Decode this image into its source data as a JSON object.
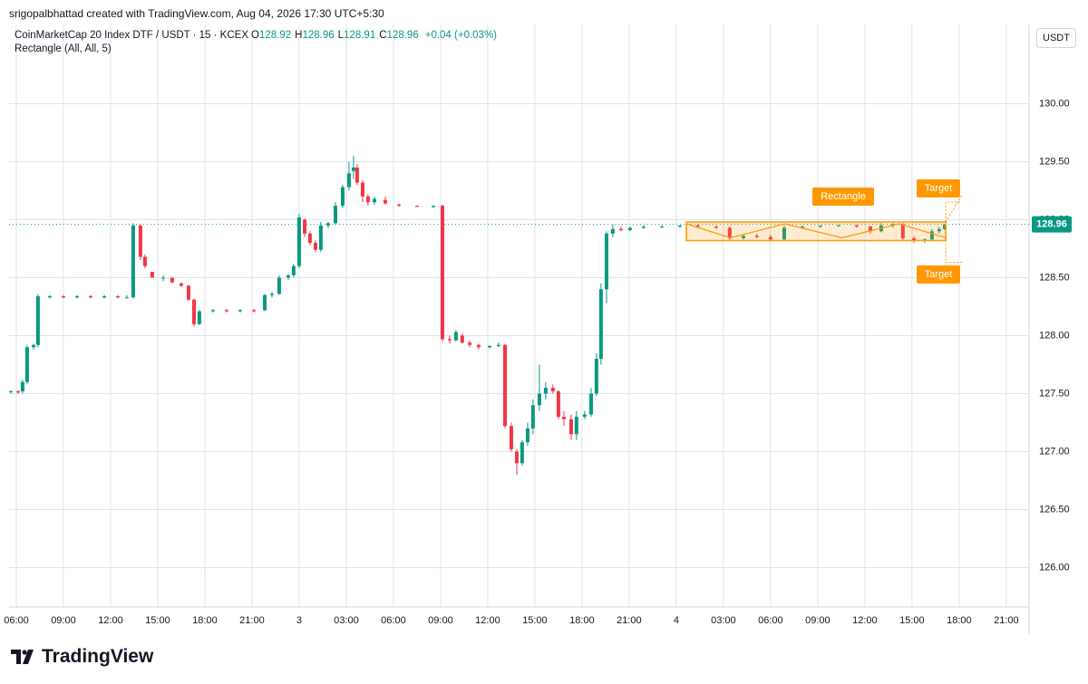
{
  "attribution": "srigopalbhattad created with TradingView.com, Aug 04, 2026 17:30 UTC+5:30",
  "logo": "TradingView",
  "chart_data": {
    "type": "candlestick",
    "title": "CoinMarketCap 20 Index DTF / USDT · 15 · KCEX",
    "ohlc": [
      {
        "label": "O",
        "value": "128.92"
      },
      {
        "label": "H",
        "value": "128.96"
      },
      {
        "label": "L",
        "value": "128.91"
      },
      {
        "label": "C",
        "value": "128.96"
      }
    ],
    "change": "+0.04 (+0.03%)",
    "indicator": "Rectangle (All, All, 5)",
    "currency": "USDT",
    "up_color": "#089981",
    "down_color": "#f23645",
    "grid": true,
    "current_price": 128.96,
    "current_price_label": "128.96",
    "xlim": [
      -0.46,
      64.45
    ],
    "ylim": [
      125.66,
      130.66
    ],
    "xticks": [
      {
        "value": 0,
        "label": "06:00"
      },
      {
        "value": 3,
        "label": "09:00"
      },
      {
        "value": 6,
        "label": "12:00"
      },
      {
        "value": 9,
        "label": "15:00"
      },
      {
        "value": 12,
        "label": "18:00"
      },
      {
        "value": 15,
        "label": "21:00"
      },
      {
        "value": 18,
        "label": "3"
      },
      {
        "value": 21,
        "label": "03:00"
      },
      {
        "value": 24,
        "label": "06:00"
      },
      {
        "value": 27,
        "label": "09:00"
      },
      {
        "value": 30,
        "label": "12:00"
      },
      {
        "value": 33,
        "label": "15:00"
      },
      {
        "value": 36,
        "label": "18:00"
      },
      {
        "value": 39,
        "label": "21:00"
      },
      {
        "value": 42,
        "label": "4"
      },
      {
        "value": 45,
        "label": "03:00"
      },
      {
        "value": 48,
        "label": "06:00"
      },
      {
        "value": 51,
        "label": "09:00"
      },
      {
        "value": 54,
        "label": "12:00"
      },
      {
        "value": 57,
        "label": "15:00"
      },
      {
        "value": 60,
        "label": "18:00"
      },
      {
        "value": 63,
        "label": "21:00"
      }
    ],
    "yticks": [
      {
        "value": 126,
        "label": "126.00"
      },
      {
        "value": 126.5,
        "label": "126.50"
      },
      {
        "value": 127,
        "label": "127.00"
      },
      {
        "value": 127.5,
        "label": "127.50"
      },
      {
        "value": 128,
        "label": "128.00"
      },
      {
        "value": 128.5,
        "label": "128.50"
      },
      {
        "value": 129,
        "label": "129.00"
      },
      {
        "value": 129.5,
        "label": "129.50"
      },
      {
        "value": 130,
        "label": "130.00"
      }
    ],
    "x": [
      -0.35,
      0.12,
      0.4,
      0.69,
      1.1,
      1.38,
      2.13,
      3.0,
      3.87,
      4.73,
      5.6,
      6.46,
      7.04,
      7.44,
      7.9,
      8.19,
      8.65,
      9.35,
      9.92,
      10.5,
      10.96,
      11.31,
      11.65,
      12.52,
      13.38,
      14.25,
      15.12,
      15.81,
      16.27,
      16.73,
      17.31,
      17.65,
      18.0,
      18.35,
      18.69,
      19.04,
      19.38,
      19.85,
      20.31,
      20.77,
      21.17,
      21.46,
      21.69,
      22.04,
      22.38,
      22.79,
      23.48,
      24.35,
      25.5,
      26.54,
      27.12,
      27.58,
      27.98,
      28.38,
      28.85,
      29.42,
      30.12,
      30.69,
      31.1,
      31.5,
      31.85,
      32.19,
      32.54,
      32.88,
      33.29,
      33.69,
      34.15,
      34.5,
      34.85,
      35.31,
      35.65,
      36.17,
      36.58,
      36.92,
      37.21,
      37.56,
      37.96,
      38.48,
      39.06,
      39.92,
      41.08,
      42.23,
      43.38,
      44.54,
      45.4,
      46.27,
      47.13,
      48.0,
      48.87,
      50.02,
      51.17,
      52.33,
      53.48,
      54.35,
      55.04,
      55.79,
      56.42,
      57.12,
      57.81,
      58.27,
      58.73,
      59.08
    ],
    "open": [
      127.52,
      127.52,
      127.52,
      127.6,
      127.9,
      127.92,
      128.33,
      128.34,
      128.33,
      128.34,
      128.33,
      128.34,
      128.33,
      128.33,
      128.95,
      128.68,
      128.55,
      128.5,
      128.5,
      128.45,
      128.43,
      128.31,
      128.1,
      128.21,
      128.22,
      128.21,
      128.22,
      128.22,
      128.35,
      128.36,
      128.5,
      128.52,
      128.6,
      129.0,
      128.88,
      128.8,
      128.74,
      128.95,
      128.97,
      129.12,
      129.28,
      129.42,
      129.45,
      129.32,
      129.2,
      129.15,
      129.17,
      129.13,
      129.12,
      129.11,
      129.12,
      127.97,
      127.96,
      128.0,
      127.94,
      127.92,
      127.9,
      127.91,
      127.92,
      127.22,
      127.0,
      126.9,
      127.08,
      127.2,
      127.4,
      127.5,
      127.55,
      127.52,
      127.3,
      127.28,
      127.15,
      127.3,
      127.32,
      127.5,
      127.8,
      128.4,
      128.88,
      128.92,
      128.91,
      128.93,
      128.94,
      128.94,
      128.95,
      128.94,
      128.93,
      128.84,
      128.86,
      128.85,
      128.83,
      128.93,
      128.94,
      128.95,
      128.95,
      128.94,
      128.9,
      128.95,
      128.96,
      128.84,
      128.82,
      128.83,
      128.9,
      128.92
    ],
    "high": [
      127.53,
      127.53,
      127.62,
      127.92,
      127.93,
      128.36,
      128.35,
      128.35,
      128.35,
      128.35,
      128.35,
      128.35,
      128.35,
      128.97,
      128.96,
      128.7,
      128.55,
      128.52,
      128.5,
      128.46,
      128.44,
      128.32,
      128.22,
      128.23,
      128.23,
      128.23,
      128.23,
      128.36,
      128.38,
      128.52,
      128.53,
      128.62,
      129.05,
      129.01,
      128.9,
      128.82,
      128.98,
      128.98,
      129.15,
      129.3,
      129.5,
      129.55,
      129.48,
      129.34,
      129.22,
      129.2,
      129.2,
      129.14,
      129.12,
      129.12,
      129.13,
      128.0,
      128.05,
      128.02,
      127.96,
      127.93,
      127.92,
      127.94,
      127.93,
      127.25,
      127.02,
      127.1,
      127.25,
      127.45,
      127.75,
      127.6,
      127.58,
      127.53,
      127.35,
      127.32,
      127.35,
      127.35,
      127.55,
      127.85,
      128.45,
      128.9,
      128.96,
      128.94,
      128.94,
      128.95,
      128.95,
      128.95,
      128.96,
      128.95,
      128.94,
      128.87,
      128.88,
      128.87,
      128.95,
      128.95,
      128.95,
      128.96,
      128.96,
      128.95,
      128.97,
      128.97,
      128.97,
      128.86,
      128.84,
      128.92,
      128.94,
      128.96
    ],
    "low": [
      127.5,
      127.5,
      127.5,
      127.58,
      127.88,
      127.9,
      128.32,
      128.32,
      128.32,
      128.32,
      128.32,
      128.32,
      128.32,
      128.32,
      128.65,
      128.58,
      128.5,
      128.47,
      128.45,
      128.42,
      128.3,
      128.08,
      128.09,
      128.2,
      128.2,
      128.2,
      128.2,
      128.21,
      128.33,
      128.35,
      128.48,
      128.5,
      128.58,
      128.85,
      128.78,
      128.72,
      128.72,
      128.93,
      128.96,
      129.1,
      129.25,
      129.35,
      129.3,
      129.15,
      129.12,
      129.13,
      129.13,
      129.11,
      129.11,
      129.1,
      127.95,
      127.93,
      127.95,
      127.93,
      127.9,
      127.88,
      127.89,
      127.9,
      127.2,
      127.0,
      126.8,
      126.88,
      127.05,
      127.15,
      127.35,
      127.45,
      127.5,
      127.28,
      127.22,
      127.1,
      127.1,
      127.28,
      127.3,
      127.48,
      127.75,
      128.28,
      128.85,
      128.9,
      128.9,
      128.92,
      128.93,
      128.93,
      128.93,
      128.92,
      128.82,
      128.83,
      128.84,
      128.81,
      128.82,
      128.92,
      128.93,
      128.94,
      128.93,
      128.88,
      128.89,
      128.93,
      128.82,
      128.8,
      128.8,
      128.82,
      128.88,
      128.91
    ],
    "close": [
      127.52,
      127.51,
      127.6,
      127.9,
      127.92,
      128.34,
      128.34,
      128.33,
      128.34,
      128.33,
      128.34,
      128.33,
      128.33,
      128.95,
      128.68,
      128.6,
      128.5,
      128.5,
      128.46,
      128.43,
      128.31,
      128.1,
      128.21,
      128.22,
      128.21,
      128.22,
      128.21,
      128.35,
      128.36,
      128.5,
      128.52,
      128.6,
      129.02,
      128.88,
      128.8,
      128.74,
      128.95,
      128.97,
      129.12,
      129.28,
      129.4,
      129.45,
      129.32,
      129.2,
      129.15,
      129.18,
      129.14,
      129.12,
      129.11,
      129.12,
      127.97,
      127.96,
      128.03,
      127.94,
      127.92,
      127.9,
      127.91,
      127.92,
      127.22,
      127.02,
      126.9,
      127.08,
      127.2,
      127.4,
      127.5,
      127.55,
      127.52,
      127.3,
      127.28,
      127.15,
      127.3,
      127.32,
      127.5,
      127.8,
      128.4,
      128.88,
      128.92,
      128.91,
      128.93,
      128.94,
      128.94,
      128.95,
      128.94,
      128.93,
      128.84,
      128.86,
      128.85,
      128.83,
      128.93,
      128.94,
      128.95,
      128.95,
      128.94,
      128.9,
      128.95,
      128.96,
      128.84,
      128.82,
      128.83,
      128.9,
      128.92,
      128.96
    ],
    "drawing": {
      "label": "Rectangle",
      "x": [
        42.64,
        59.15
      ],
      "y": [
        128.82,
        128.98
      ],
      "targets": [
        "Target",
        "Target"
      ]
    }
  }
}
